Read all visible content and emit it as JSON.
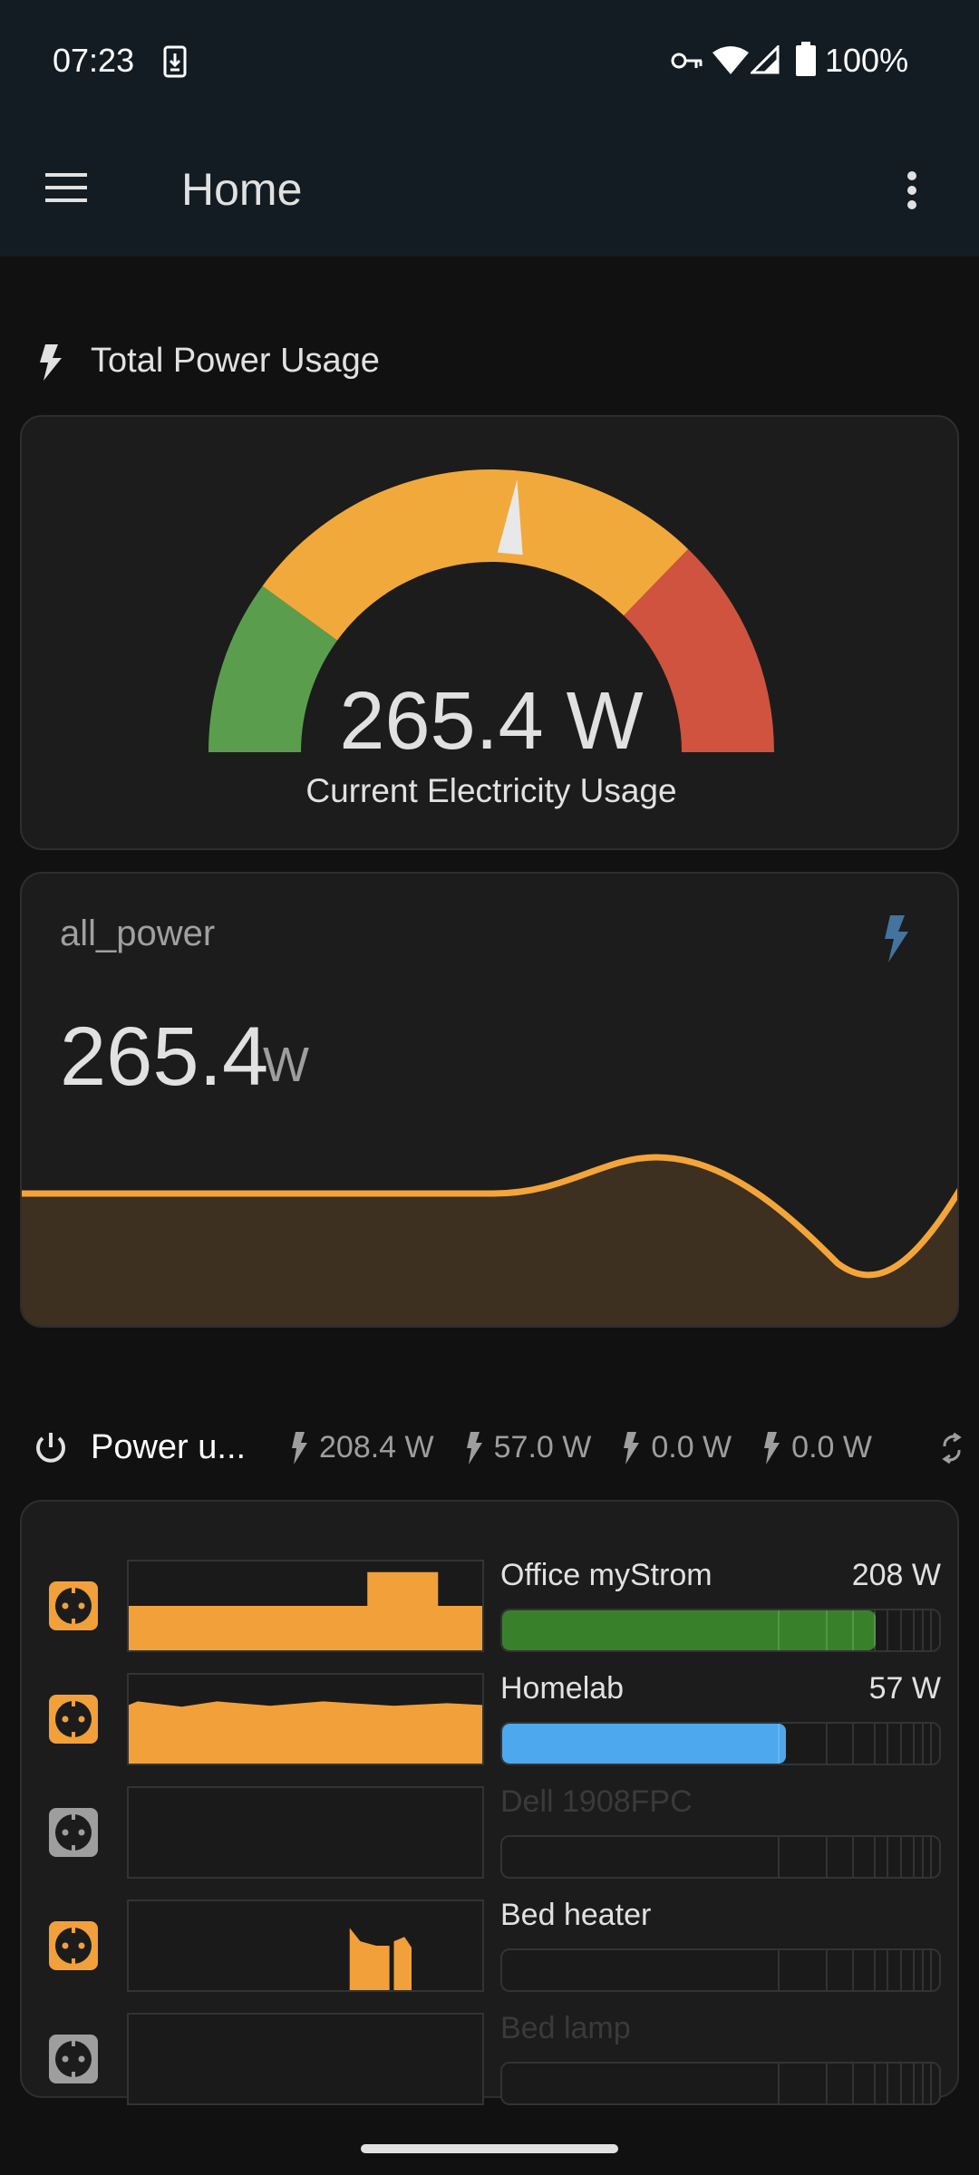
{
  "status_bar": {
    "time": "07:23",
    "battery": "100%",
    "icons": [
      "download-icon",
      "vpn-key-icon",
      "wifi-icon",
      "signal-icon",
      "battery-icon"
    ]
  },
  "app_bar": {
    "title": "Home",
    "menu_icon": "hamburger-menu-icon",
    "overflow_icon": "more-vert-icon"
  },
  "section_total": {
    "title": "Total Power Usage",
    "icon": "flash-icon"
  },
  "gauge": {
    "value": "265.4 W",
    "label": "Current Electricity Usage",
    "needle_fraction": 0.53,
    "segments": [
      {
        "color": "#5a9e4d",
        "from": 0,
        "to": 0.2
      },
      {
        "color": "#f2a93b",
        "from": 0.2,
        "to": 0.745
      },
      {
        "color": "#cf533f",
        "from": 0.745,
        "to": 1
      }
    ]
  },
  "sensor_card": {
    "name": "all_power",
    "value": "265.4",
    "unit": "W",
    "icon": "flash-icon",
    "icon_color": "#44739e",
    "line_color": "#f4a53a"
  },
  "power_header": {
    "title": "Power u...",
    "icon": "power-icon",
    "chips": [
      {
        "value": "208.4 W"
      },
      {
        "value": "57.0 W"
      },
      {
        "value": "0.0 W"
      },
      {
        "value": "0.0 W"
      }
    ],
    "refresh_icon": "refresh-icon"
  },
  "entities": [
    {
      "name": "Office myStrom",
      "value": "208 W",
      "active": true,
      "bar_fraction": 0.855,
      "bar_color": "#38812a"
    },
    {
      "name": "Homelab",
      "value": "57 W",
      "active": true,
      "bar_fraction": 0.65,
      "bar_color": "#4da8ee"
    },
    {
      "name": "Dell 1908FPC",
      "value": "",
      "active": false,
      "bar_fraction": 0,
      "bar_color": "#38812a"
    },
    {
      "name": "Bed heater",
      "value": "",
      "active": true,
      "bar_fraction": 0,
      "bar_color": "#38812a"
    },
    {
      "name": "Bed lamp",
      "value": "",
      "active": false,
      "bar_fraction": 0,
      "bar_color": "#38812a"
    }
  ],
  "colors": {
    "accent": "#f2a03a",
    "plug_inactive": "#9e9e9e"
  }
}
